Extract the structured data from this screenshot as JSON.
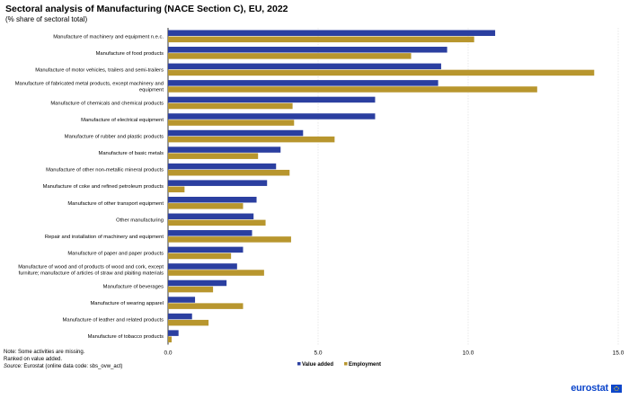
{
  "chart_data": {
    "type": "bar",
    "orientation": "horizontal",
    "title": "Sectoral analysis of Manufacturing (NACE Section C), EU, 2022",
    "subtitle": "(% share of sectoral total)",
    "xlabel": "",
    "ylabel": "",
    "xlim": [
      0,
      15
    ],
    "x_ticks": [
      0,
      5,
      10,
      15
    ],
    "x_tick_labels": [
      "0.0",
      "5.0",
      "10.0",
      "15.0"
    ],
    "grid": true,
    "legend_position": "bottom-center",
    "categories": [
      "Manufacture of machinery and equipment n.e.c.",
      "Manufacture of food products",
      "Manufacture of motor vehicles, trailers and semi-trailers",
      "Manufacture of fabricated metal products, except machinery and equipment",
      "Manufacture of chemicals and chemical products",
      "Manufacture of electrical equipment",
      "Manufacture of rubber and plastic products",
      "Manufacture of basic metals",
      "Manufacture of other non-metallic mineral products",
      "Manufacture of coke and refined petroleum products",
      "Manufacture of other transport equipment",
      "Other manufacturing",
      "Repair and installation of machinery and equipment",
      "Manufacture of paper and paper products",
      "Manufacture of wood and of products of wood and cork, except furniture; manufacture of articles of straw and plaiting materials",
      "Manufacture of beverages",
      "Manufacture of wearing apparel",
      "Manufacture of leather and related products",
      "Manufacture of tobacco products"
    ],
    "series": [
      {
        "name": "Value added",
        "color": "#2b3fa0",
        "values": [
          10.9,
          9.3,
          9.1,
          9.0,
          6.9,
          6.9,
          4.5,
          3.75,
          3.6,
          3.3,
          2.95,
          2.85,
          2.8,
          2.5,
          2.3,
          1.95,
          0.9,
          0.8,
          0.35
        ]
      },
      {
        "name": "Employment",
        "color": "#b8962e",
        "values": [
          10.2,
          8.1,
          14.2,
          12.3,
          4.15,
          4.2,
          5.55,
          3.0,
          4.05,
          0.55,
          2.5,
          3.25,
          4.1,
          2.1,
          3.2,
          1.5,
          2.5,
          1.35,
          0.12
        ]
      }
    ]
  },
  "footer": {
    "note_1": "Note: Some activities are missing.",
    "note_2": "Ranked on value added.",
    "source_label": "Source:",
    "source_text": " Eurostat (online data code: sbs_ovw_act)"
  },
  "logo": {
    "text": "eurostat"
  }
}
